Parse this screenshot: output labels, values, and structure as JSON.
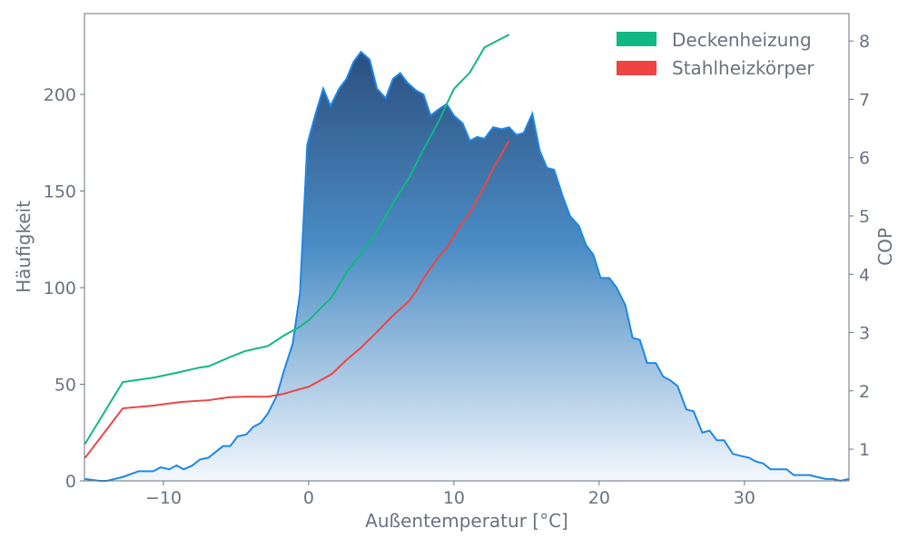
{
  "chart_data": {
    "type": "area",
    "xlabel": "Außentemperatur [°C]",
    "ylabel": "Häufigkeit",
    "y2label": "COP",
    "xlim": [
      -15.44,
      37.2
    ],
    "ylim": [
      0,
      241.8
    ],
    "y2lim": [
      0.456,
      8.47
    ],
    "xticks": [
      -10,
      0,
      10,
      20,
      30
    ],
    "xtick_labels": [
      "−10",
      "0",
      "10",
      "20",
      "30"
    ],
    "yticks": [
      0,
      50,
      100,
      150,
      200
    ],
    "y2ticks": [
      1,
      2,
      3,
      4,
      5,
      6,
      7,
      8
    ],
    "grid": false,
    "legend_position": "top-right",
    "histogram": {
      "color": "#1e88e5",
      "fill_top": "#2c4f80",
      "fill_bottom": "#f4f8fd",
      "x": [
        -15.4,
        -14.4,
        -13.9,
        -12.8,
        -11.7,
        -11.2,
        -10.7,
        -10.2,
        -9.6,
        -9.1,
        -8.6,
        -8.0,
        -7.5,
        -6.9,
        -6.4,
        -5.9,
        -5.4,
        -4.9,
        -4.3,
        -3.8,
        -3.3,
        -2.8,
        -2.2,
        -1.7,
        -1.1,
        -0.6,
        -0.1,
        0.4,
        1.0,
        1.5,
        2.1,
        2.6,
        3.1,
        3.6,
        4.2,
        4.7,
        5.3,
        5.8,
        6.3,
        6.8,
        7.4,
        7.9,
        8.4,
        8.9,
        9.5,
        10.0,
        10.6,
        11.1,
        11.6,
        12.1,
        12.7,
        13.3,
        13.8,
        14.3,
        14.8,
        15.4,
        15.9,
        16.4,
        16.9,
        17.5,
        18.0,
        18.6,
        19.1,
        19.6,
        20.1,
        20.7,
        21.2,
        21.8,
        22.3,
        22.8,
        23.3,
        23.9,
        24.4,
        24.9,
        25.4,
        26.0,
        26.5,
        27.1,
        27.6,
        28.1,
        28.6,
        29.2,
        29.7,
        30.3,
        30.8,
        31.3,
        31.8,
        32.4,
        32.9,
        33.4,
        33.9,
        34.5,
        35.0,
        35.6,
        36.1,
        36.6,
        37.2
      ],
      "y": [
        1,
        0,
        0,
        2,
        5,
        5,
        5,
        7,
        6,
        8,
        6,
        8,
        11,
        12,
        15,
        18,
        18,
        23,
        24,
        28,
        30,
        35,
        44,
        57,
        71,
        97,
        174,
        188,
        203,
        194,
        203,
        208,
        217,
        222,
        218,
        203,
        198,
        208,
        211,
        206,
        202,
        200,
        189,
        192,
        195,
        189,
        185,
        176,
        178,
        177,
        183,
        182,
        183,
        179,
        180,
        190,
        171,
        162,
        161,
        147,
        137,
        132,
        122,
        117,
        105,
        105,
        100,
        91,
        74,
        73,
        61,
        61,
        54,
        52,
        49,
        37,
        36,
        25,
        26,
        21,
        21,
        14,
        13,
        12,
        10,
        9,
        6,
        6,
        6,
        3,
        3,
        3,
        2,
        1,
        1,
        0,
        1
      ]
    },
    "series": [
      {
        "name": "Deckenheizung",
        "color": "#10b981",
        "x": [
          -15.4,
          -12.8,
          -10.6,
          -9.1,
          -7.5,
          -6.9,
          -5.5,
          -4.4,
          -2.8,
          -1.7,
          -0.6,
          0,
          1.6,
          2.6,
          3.6,
          4.2,
          4.7,
          5.3,
          5.8,
          6.9,
          7.8,
          8.9,
          10,
          11.1,
          12.1,
          13.8
        ],
        "y": [
          1.09,
          2.15,
          2.23,
          2.31,
          2.4,
          2.42,
          2.57,
          2.68,
          2.77,
          2.95,
          3.1,
          3.21,
          3.61,
          4.03,
          4.35,
          4.55,
          4.73,
          5.0,
          5.22,
          5.65,
          6.09,
          6.6,
          7.18,
          7.46,
          7.89,
          8.11
        ]
      },
      {
        "name": "Stahlheizkörper",
        "color": "#ef4444",
        "x": [
          -15.4,
          -12.8,
          -10.6,
          -9.7,
          -8.75,
          -6.9,
          -5.5,
          -4.4,
          -2.8,
          -1.7,
          -0.6,
          0,
          0.6,
          1.6,
          2.6,
          3.6,
          4.7,
          5.8,
          6.9,
          7.4,
          7.9,
          8.9,
          9.5,
          10,
          11.1,
          12.1,
          12.7,
          13.8
        ],
        "y": [
          0.85,
          1.7,
          1.75,
          1.78,
          1.81,
          1.84,
          1.89,
          1.9,
          1.9,
          1.95,
          2.03,
          2.07,
          2.15,
          2.29,
          2.53,
          2.74,
          3.01,
          3.29,
          3.54,
          3.71,
          3.93,
          4.28,
          4.45,
          4.66,
          5.06,
          5.51,
          5.81,
          6.29
        ]
      }
    ]
  }
}
